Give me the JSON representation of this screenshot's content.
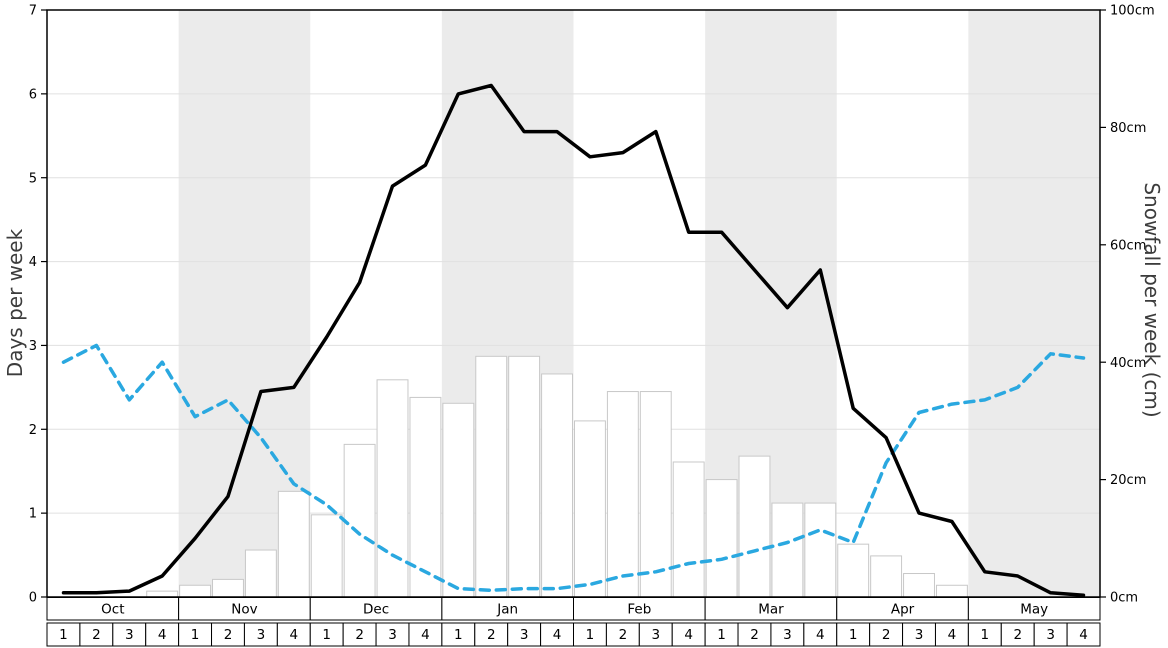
{
  "chart_data": {
    "type": "line+bar",
    "title": "",
    "months": [
      "Oct",
      "Nov",
      "Dec",
      "Jan",
      "Feb",
      "Mar",
      "Apr",
      "May"
    ],
    "week_labels": [
      "1",
      "2",
      "3",
      "4"
    ],
    "shaded_months": [
      "Nov",
      "Jan",
      "Mar",
      "May"
    ],
    "left_axis": {
      "label": "Days per week",
      "min": 0,
      "max": 7,
      "ticks": [
        0,
        1,
        2,
        3,
        4,
        5,
        6,
        7
      ]
    },
    "right_axis": {
      "label": "Snowfall per week (cm)",
      "min": 0,
      "max": 100,
      "ticks": [
        0,
        20,
        40,
        60,
        80,
        100
      ],
      "tick_suffix": "cm"
    },
    "colors": {
      "band": "#ebebeb",
      "grid": "#e0e0e0",
      "black_line": "#000000",
      "blue_line": "#2aa8e0",
      "bar_fill": "#ffffff",
      "bar_stroke": "#c8c8c8",
      "axis": "#000000"
    },
    "series": [
      {
        "name": "snowfall-bars",
        "type": "bar",
        "axis": "right",
        "unit": "cm",
        "fill": "#ffffff",
        "stroke": "#c8c8c8",
        "values": [
          0,
          0,
          0,
          1,
          2,
          3,
          8,
          18,
          14,
          26,
          37,
          34,
          33,
          41,
          41,
          38,
          30,
          35,
          35,
          23,
          20,
          24,
          16,
          16,
          9,
          7,
          4,
          2,
          0,
          0,
          0,
          0
        ]
      },
      {
        "name": "blue-dashed-line",
        "type": "line",
        "axis": "left",
        "style": "dashed",
        "color": "#2aa8e0",
        "values": [
          2.8,
          3.0,
          2.35,
          2.8,
          2.15,
          2.35,
          1.9,
          1.35,
          1.1,
          0.75,
          0.5,
          0.3,
          0.1,
          0.08,
          0.1,
          0.1,
          0.15,
          0.25,
          0.3,
          0.4,
          0.45,
          0.55,
          0.65,
          0.8,
          0.65,
          1.6,
          2.2,
          2.3,
          2.35,
          2.5,
          2.9,
          2.85
        ]
      },
      {
        "name": "black-solid-line",
        "type": "line",
        "axis": "left",
        "style": "solid",
        "color": "#000000",
        "values": [
          0.05,
          0.05,
          0.07,
          0.25,
          0.7,
          1.2,
          2.45,
          2.5,
          3.1,
          3.75,
          4.9,
          5.15,
          6.0,
          6.1,
          5.55,
          5.55,
          5.25,
          5.3,
          5.55,
          4.35,
          4.35,
          3.9,
          3.45,
          3.9,
          2.25,
          1.9,
          1.0,
          0.9,
          0.3,
          0.25,
          0.05,
          0.02
        ]
      }
    ]
  }
}
